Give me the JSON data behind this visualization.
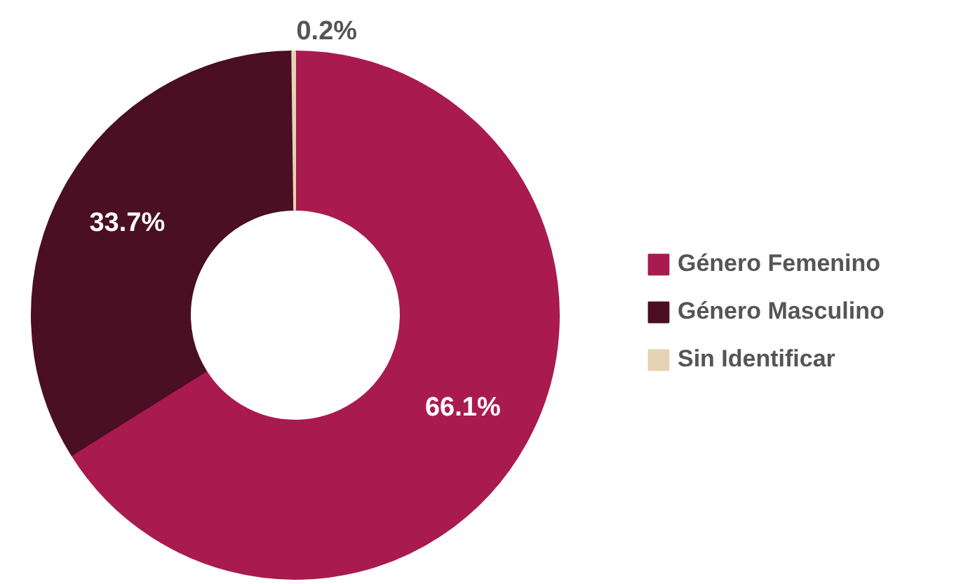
{
  "chart_data": {
    "type": "donut",
    "categories": [
      "Género Femenino",
      "Género Masculino",
      "Sin Identificar"
    ],
    "values": [
      66.1,
      33.7,
      0.2
    ],
    "colors": [
      "#a91b4f",
      "#4a0f22",
      "#e6d3b3"
    ],
    "value_labels": [
      "66.1%",
      "33.7%",
      "0.2%"
    ],
    "legend": "right"
  }
}
